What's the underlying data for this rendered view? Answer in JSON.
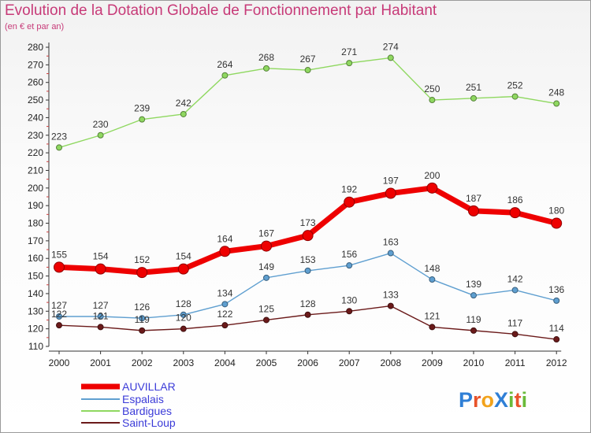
{
  "title": "Evolution de la Dotation Globale de Fonctionnement par Habitant",
  "subtitle": "(en € et par an)",
  "logo_text": "ProXiti",
  "chart_data": {
    "type": "line",
    "title": "Evolution de la Dotation Globale de Fonctionnement par Habitant",
    "subtitle": "(en € et par an)",
    "x": [
      "2000",
      "2001",
      "2002",
      "2003",
      "2004",
      "2005",
      "2006",
      "2007",
      "2008",
      "2009",
      "2010",
      "2011",
      "2012"
    ],
    "ylim": [
      110,
      280
    ],
    "y_ticks": [
      110,
      120,
      130,
      140,
      150,
      160,
      170,
      180,
      190,
      200,
      210,
      220,
      230,
      240,
      250,
      260,
      270,
      280
    ],
    "grid": false,
    "legend_position": "bottom-left",
    "series": [
      {
        "name": "AUVILLAR",
        "color": "#ee0000",
        "values": [
          155,
          154,
          152,
          154,
          164,
          167,
          173,
          192,
          197,
          200,
          187,
          186,
          180
        ]
      },
      {
        "name": "Espalais",
        "color": "#5f9fd0",
        "values": [
          127,
          127,
          126,
          128,
          134,
          149,
          153,
          156,
          163,
          148,
          139,
          142,
          136
        ]
      },
      {
        "name": "Bardigues",
        "color": "#8fd860",
        "values": [
          223,
          230,
          239,
          242,
          264,
          268,
          267,
          271,
          274,
          250,
          251,
          252,
          248
        ]
      },
      {
        "name": "Saint-Loup",
        "color": "#6b1a1a",
        "values": [
          122,
          121,
          119,
          120,
          122,
          125,
          128,
          130,
          133,
          121,
          119,
          117,
          114
        ]
      }
    ]
  }
}
